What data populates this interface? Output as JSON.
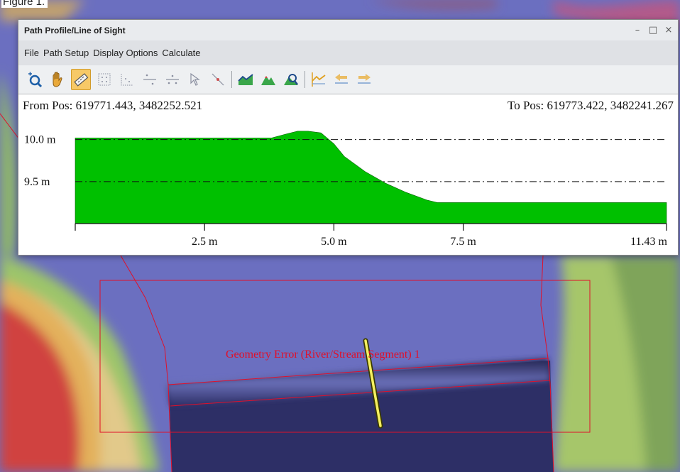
{
  "caption": "Figure 1.",
  "window": {
    "title": "Path Profile/Line of Sight",
    "controls": {
      "minimize": "–",
      "maximize": "□",
      "close": "×"
    }
  },
  "menu": [
    "File",
    "Path Setup",
    "Display Options",
    "Calculate"
  ],
  "toolbar": {
    "icons": [
      "zoom-in-icon",
      "pan-hand-icon",
      "measure-ruler-icon",
      "grid-dots-icon",
      "grid-corner-icon",
      "line-points-icon",
      "line-points-alt-icon",
      "select-arrow-icon",
      "select-line-icon",
      "terrain-line-icon",
      "terrain-fill-icon",
      "terrain-settings-icon",
      "profile-mark-icon",
      "profile-back-icon",
      "profile-forward-icon"
    ],
    "active": "measure-ruler-icon"
  },
  "profile": {
    "from_pos": "From Pos: 619771.443, 3482252.521",
    "to_pos": "To Pos: 619773.422, 3482241.267"
  },
  "chart_data": {
    "type": "area",
    "x": [
      0,
      1.0,
      2.0,
      3.0,
      3.8,
      4.1,
      4.3,
      4.5,
      4.75,
      5.0,
      5.2,
      5.6,
      6.0,
      6.4,
      6.8,
      7.0,
      8.0,
      9.0,
      10.0,
      11.43
    ],
    "y": [
      10.02,
      10.02,
      10.02,
      10.02,
      10.02,
      10.07,
      10.1,
      10.1,
      10.08,
      9.95,
      9.8,
      9.62,
      9.48,
      9.37,
      9.28,
      9.25,
      9.25,
      9.25,
      9.25,
      9.25
    ],
    "xlabels": [
      "2.5 m",
      "5.0 m",
      "7.5 m",
      "11.43 m"
    ],
    "xticks": [
      2.5,
      5.0,
      7.5,
      11.43
    ],
    "ylabels": [
      "10.0 m",
      "9.5 m"
    ],
    "yticks": [
      10.0,
      9.5
    ],
    "xlim": [
      0,
      11.43
    ],
    "ylim": [
      9.0,
      10.2
    ],
    "grid": "dash-dot horizontal at y ticks",
    "fill_color": "#00c000"
  },
  "map": {
    "error_label": "Geometry Error (River/Stream Segment) 1",
    "colors": {
      "water": "#6b6fc0",
      "deep_water": "#2d2f66",
      "error": "#e0102a",
      "path": "#f5f060"
    }
  }
}
